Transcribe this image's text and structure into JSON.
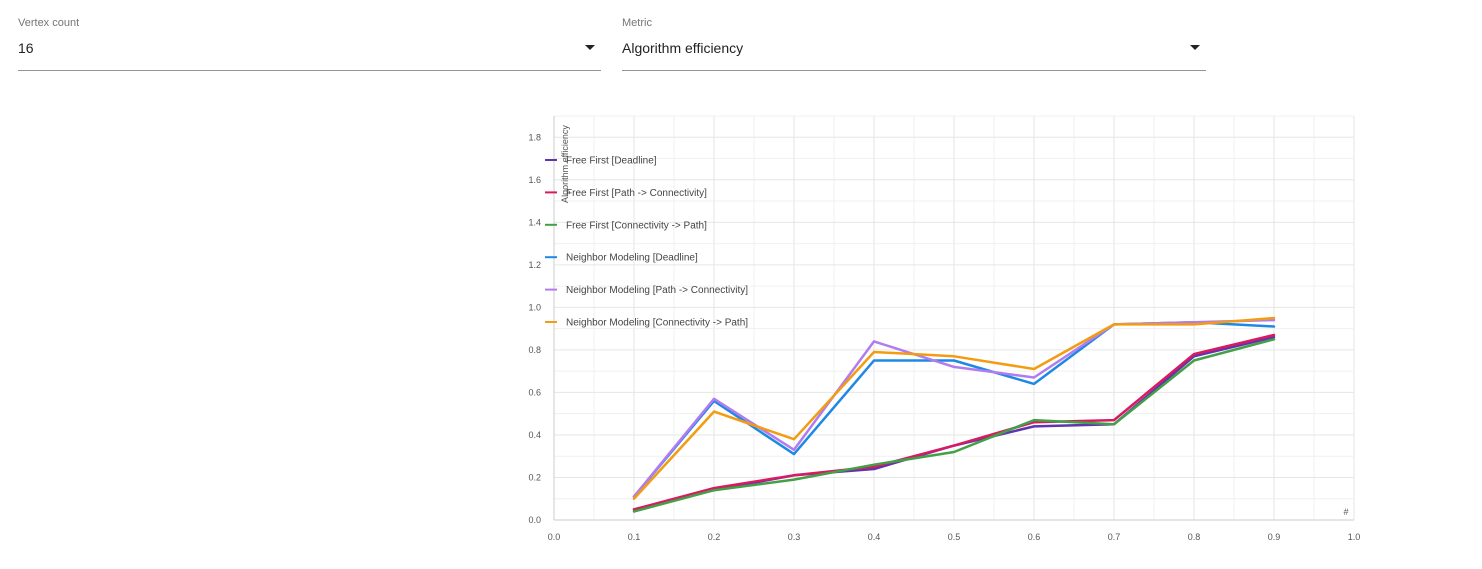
{
  "controls": {
    "vertex_count": {
      "label": "Vertex count",
      "value": "16"
    },
    "metric": {
      "label": "Metric",
      "value": "Algorithm efficiency"
    }
  },
  "chart_data": {
    "type": "line",
    "title": "",
    "xlabel": "#",
    "ylabel": "Algorithm efficiency",
    "xlim": [
      0,
      1.0
    ],
    "ylim": [
      0,
      1.9
    ],
    "xticks": [
      "0.0",
      "0.1",
      "0.2",
      "0.3",
      "0.4",
      "0.5",
      "0.6",
      "0.7",
      "0.8",
      "0.9",
      "1.0"
    ],
    "yticks": [
      "0.0",
      "0.2",
      "0.4",
      "0.6",
      "0.8",
      "1.0",
      "1.2",
      "1.4",
      "1.6",
      "1.8"
    ],
    "grid": true,
    "legend_position": "top-left",
    "x": [
      0.1,
      0.2,
      0.3,
      0.4,
      0.5,
      0.6,
      0.7,
      0.8,
      0.9
    ],
    "series": [
      {
        "name": "Free First [Deadline]",
        "color": "#5e35b1",
        "values": [
          0.05,
          0.14,
          0.21,
          0.24,
          0.35,
          0.44,
          0.45,
          0.77,
          0.86
        ]
      },
      {
        "name": "Free First [Path -> Connectivity]",
        "color": "#d81b60",
        "values": [
          0.05,
          0.15,
          0.21,
          0.25,
          0.35,
          0.46,
          0.47,
          0.78,
          0.87
        ]
      },
      {
        "name": "Free First [Connectivity -> Path]",
        "color": "#43a047",
        "values": [
          0.04,
          0.14,
          0.19,
          0.26,
          0.32,
          0.47,
          0.45,
          0.75,
          0.85
        ]
      },
      {
        "name": "Neighbor Modeling [Deadline]",
        "color": "#1e88e5",
        "values": [
          0.11,
          0.56,
          0.31,
          0.75,
          0.75,
          0.64,
          0.92,
          0.93,
          0.91
        ]
      },
      {
        "name": "Neighbor Modeling [Path -> Connectivity]",
        "color": "#b07cf0",
        "values": [
          0.11,
          0.57,
          0.33,
          0.84,
          0.72,
          0.67,
          0.92,
          0.93,
          0.94
        ]
      },
      {
        "name": "Neighbor Modeling [Connectivity -> Path]",
        "color": "#f39c12",
        "values": [
          0.1,
          0.51,
          0.38,
          0.79,
          0.77,
          0.71,
          0.92,
          0.92,
          0.95
        ]
      }
    ]
  }
}
